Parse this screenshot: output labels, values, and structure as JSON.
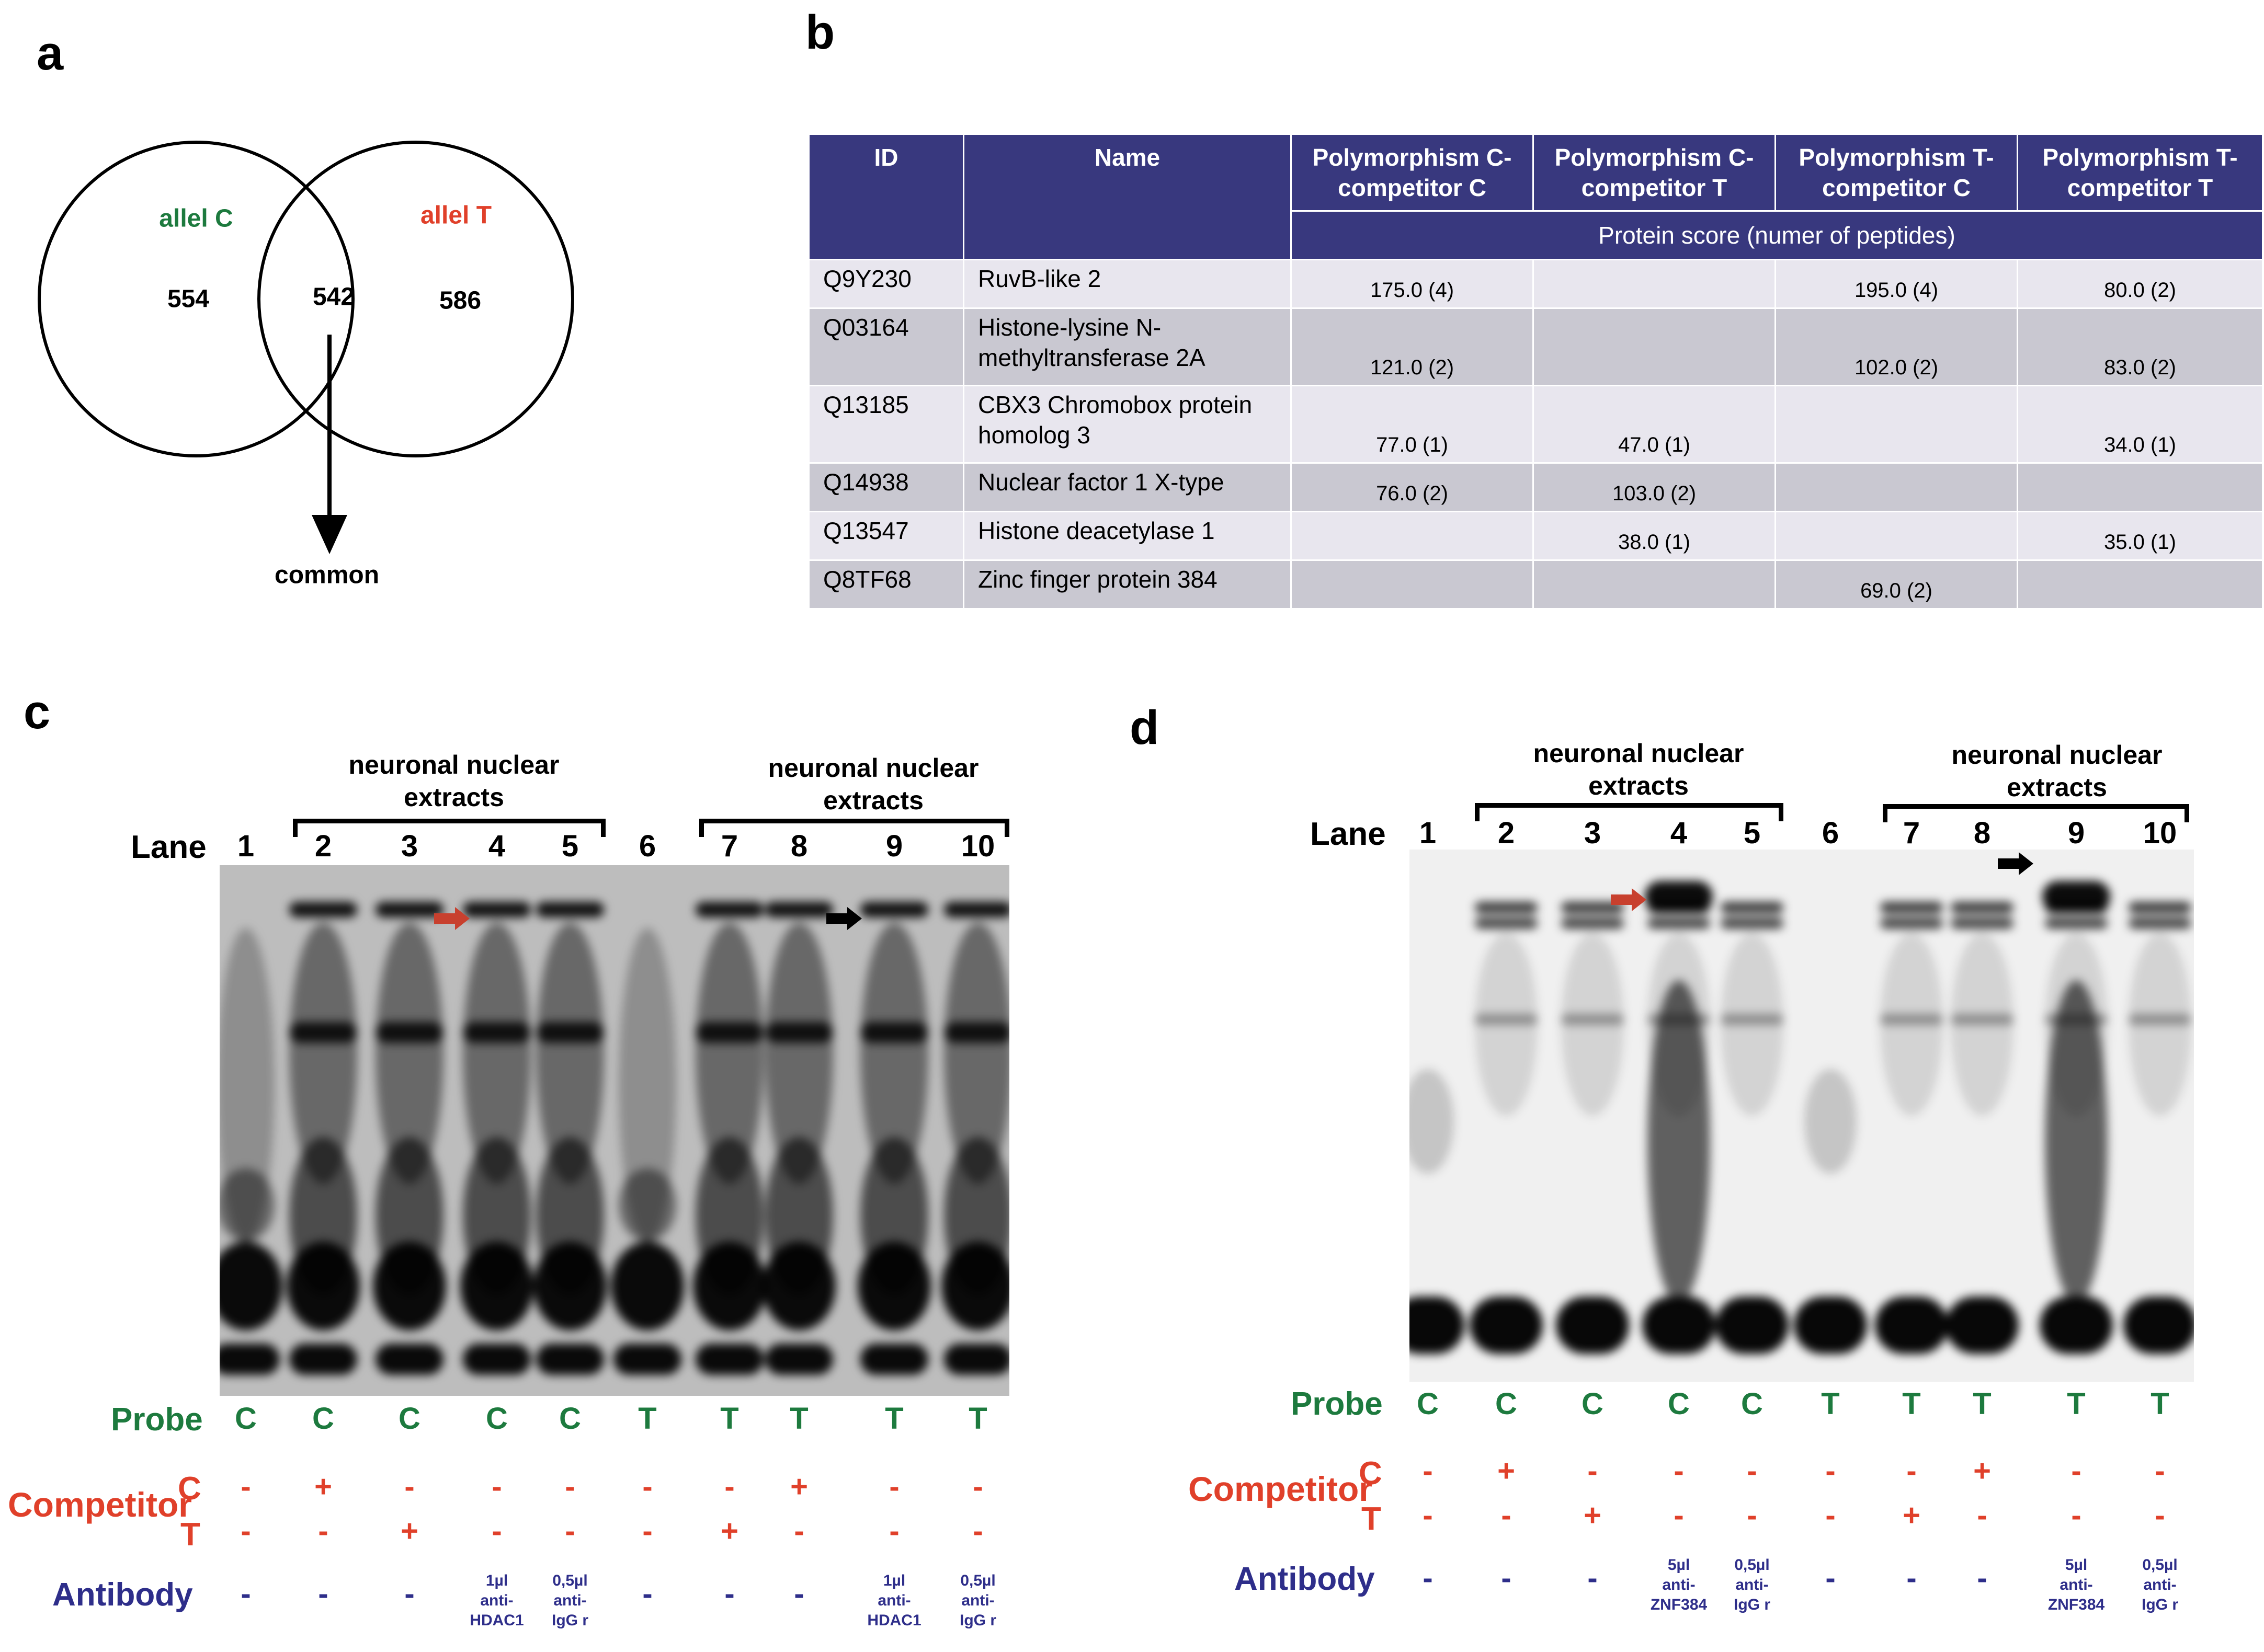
{
  "panels": {
    "a": "a",
    "b": "b",
    "c": "c",
    "d": "d"
  },
  "venn": {
    "left_label": "allel C",
    "right_label": "allel T",
    "left_count": "554",
    "overlap_count": "542",
    "right_count": "586",
    "arrow_label": "common"
  },
  "table": {
    "headers": [
      "ID",
      "Name",
      "Polymorphism C-competitor C",
      "Polymorphism C-competitor T",
      "Polymorphism T-competitor C",
      "Polymorphism T-competitor T"
    ],
    "subheader": "Protein score (numer of peptides)",
    "rows": [
      {
        "id": "Q9Y230",
        "name": "RuvB-like 2",
        "cc": "175.0 (4)",
        "ct": "",
        "tc": "195.0 (4)",
        "tt": "80.0 (2)"
      },
      {
        "id": "Q03164",
        "name": "Histone-lysine N-methyltransferase 2A",
        "cc": "121.0 (2)",
        "ct": "",
        "tc": "102.0 (2)",
        "tt": "83.0 (2)"
      },
      {
        "id": "Q13185",
        "name": " CBX3 Chromobox protein homolog 3",
        "cc": "77.0 (1)",
        "ct": "47.0 (1)",
        "tc": "",
        "tt": "34.0 (1)"
      },
      {
        "id": "Q14938",
        "name": "Nuclear factor 1 X-type",
        "cc": "76.0 (2)",
        "ct": "103.0 (2)",
        "tc": "",
        "tt": ""
      },
      {
        "id": "Q13547",
        "name": "Histone deacetylase 1",
        "cc": "",
        "ct": "38.0 (1)",
        "tc": "",
        "tt": "35.0 (1)"
      },
      {
        "id": "Q8TF68",
        "name": "Zinc finger protein 384",
        "cc": "",
        "ct": "",
        "tc": "69.0 (2)",
        "tt": ""
      }
    ]
  },
  "gel_c": {
    "extract_label_left": "neuronal nuclear extracts",
    "extract_label_right": "neuronal nuclear extracts",
    "lane_word": "Lane",
    "lanes": [
      "1",
      "2",
      "3",
      "4",
      "5",
      "6",
      "7",
      "8",
      "9",
      "10"
    ],
    "probe_label": "Probe",
    "probe": [
      "C",
      "C",
      "C",
      "C",
      "C",
      "T",
      "T",
      "T",
      "T",
      "T"
    ],
    "competitor_label": "Competitor",
    "comp_c_letter": "C",
    "comp_t_letter": "T",
    "competitor_c": [
      "-",
      "+",
      "-",
      "-",
      "-",
      "-",
      "-",
      "+",
      "-",
      "-"
    ],
    "competitor_t": [
      "-",
      "-",
      "+",
      "-",
      "-",
      "-",
      "+",
      "-",
      "-",
      "-"
    ],
    "antibody_label": "Antibody",
    "antibody": [
      "-",
      "-",
      "-",
      "1µl anti-HDAC1",
      "0,5µl anti-IgG r",
      "-",
      "-",
      "-",
      "1µl anti-HDAC1",
      "0,5µl anti-IgG r"
    ]
  },
  "gel_d": {
    "extract_label_left": "neuronal nuclear extracts",
    "extract_label_right": "neuronal nuclear extracts",
    "lane_word": "Lane",
    "lanes": [
      "1",
      "2",
      "3",
      "4",
      "5",
      "6",
      "7",
      "8",
      "9",
      "10"
    ],
    "probe_label": "Probe",
    "probe": [
      "C",
      "C",
      "C",
      "C",
      "C",
      "T",
      "T",
      "T",
      "T",
      "T"
    ],
    "competitor_label": "Competitor",
    "comp_c_letter": "C",
    "comp_t_letter": "T",
    "competitor_c": [
      "-",
      "+",
      "-",
      "-",
      "-",
      "-",
      "-",
      "+",
      "-",
      "-"
    ],
    "competitor_t": [
      "-",
      "-",
      "+",
      "-",
      "-",
      "-",
      "+",
      "-",
      "-",
      "-"
    ],
    "antibody_label": "Antibody",
    "antibody": [
      "-",
      "-",
      "-",
      "5µl anti-ZNF384",
      "0,5µl anti-IgG r",
      "-",
      "-",
      "-",
      "5µl anti-ZNF384",
      "0,5µl anti-IgG r"
    ]
  },
  "colors": {
    "probe": "#1d7a3e",
    "competitor": "#e0402a",
    "antibody": "#2e2e8a",
    "table_header": "#38387e"
  }
}
